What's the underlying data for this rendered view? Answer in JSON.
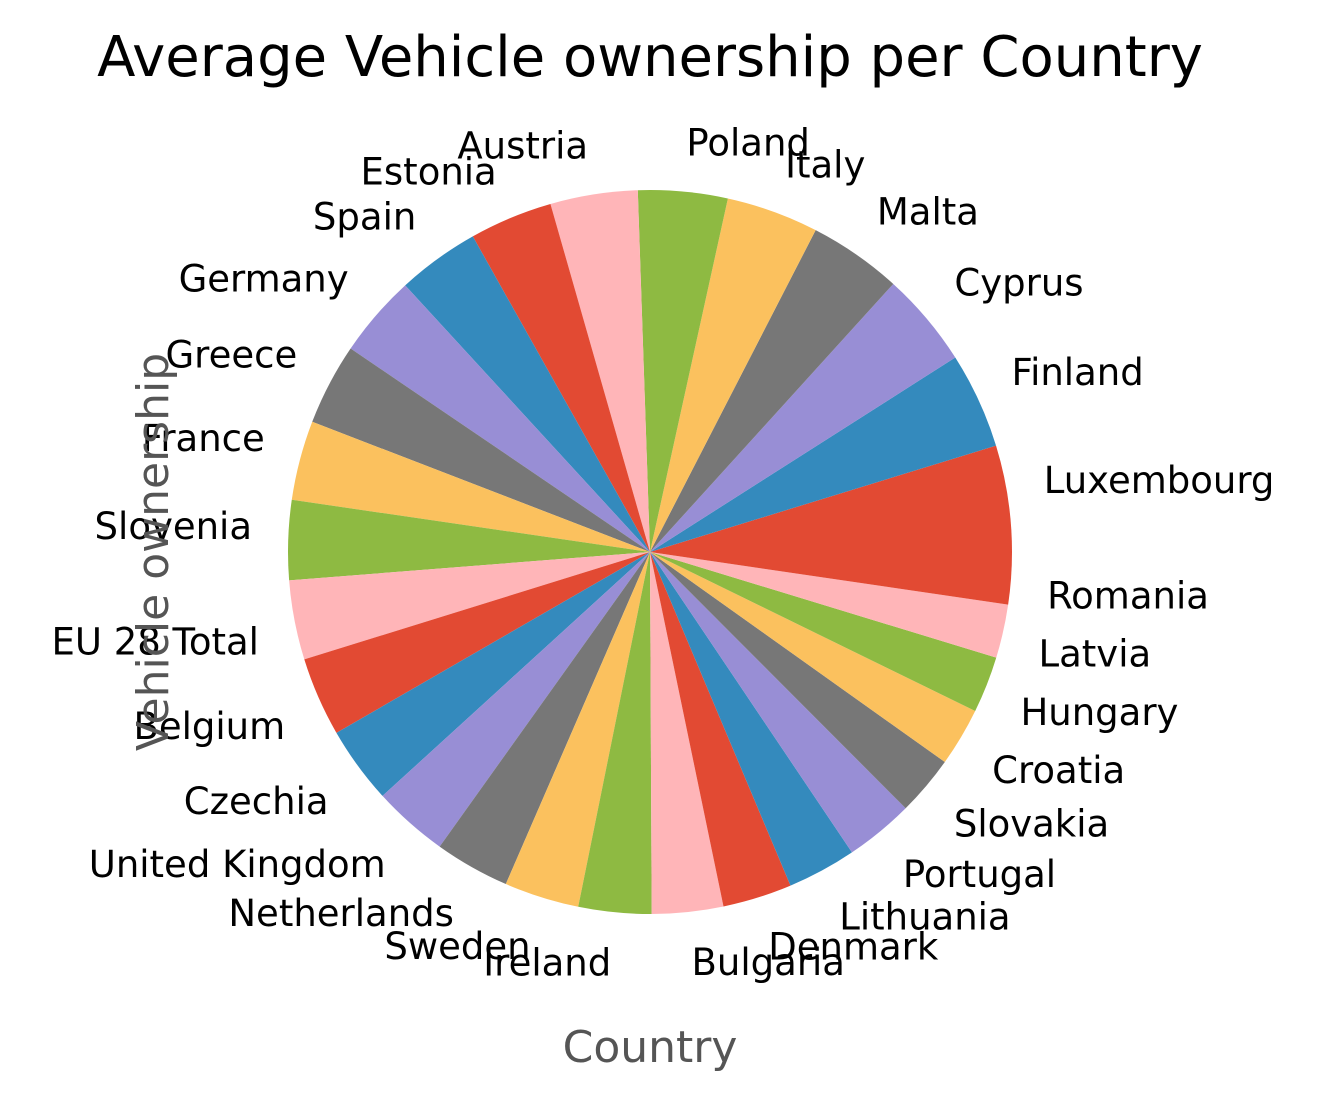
{
  "chart_data": {
    "type": "pie",
    "title": "Average Vehicle ownership per Country",
    "xlabel": "Country",
    "ylabel": "Vehicle ownership",
    "start_angle_deg": 0,
    "direction": "counterclockwise",
    "colors": [
      "#E24A33",
      "#348ABD",
      "#988ED5",
      "#777777",
      "#FBC15E",
      "#8EBA42",
      "#FFB5B8"
    ],
    "categories": [
      "Luxembourg",
      "Finland",
      "Cyprus",
      "Malta",
      "Italy",
      "Poland",
      "Austria",
      "Estonia",
      "Spain",
      "Germany",
      "Greece",
      "France",
      "Slovenia",
      "EU 28 Total",
      "Belgium",
      "Czechia",
      "United Kingdom",
      "Netherlands",
      "Sweden",
      "Ireland",
      "Bulgaria",
      "Denmark",
      "Lithuania",
      "Portugal",
      "Slovakia",
      "Croatia",
      "Hungary",
      "Latvia",
      "Romania"
    ],
    "values": [
      0.676,
      0.61,
      0.604,
      0.593,
      0.586,
      0.568,
      0.555,
      0.528,
      0.524,
      0.524,
      0.519,
      0.506,
      0.506,
      0.505,
      0.503,
      0.49,
      0.479,
      0.477,
      0.476,
      0.463,
      0.453,
      0.44,
      0.438,
      0.436,
      0.38,
      0.372,
      0.36,
      0.34,
      0.331
    ]
  }
}
